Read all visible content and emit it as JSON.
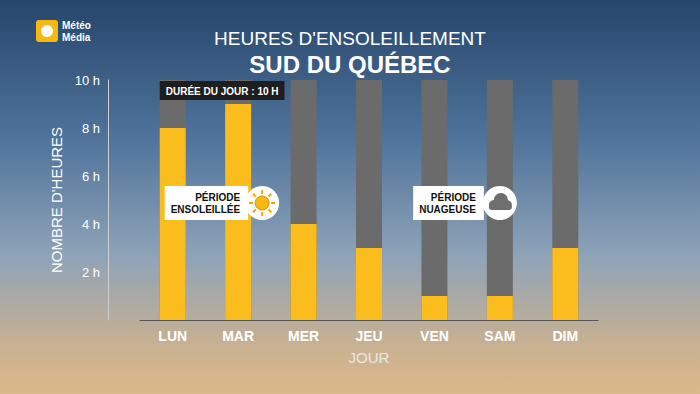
{
  "chart_data": {
    "type": "bar",
    "title": "SUD DU QUÉBEC",
    "subtitle": "HEURES D'ENSOLEILLEMENT",
    "brand": [
      "Météo",
      "Média"
    ],
    "x_label": "JOUR",
    "y_label": "NOMBRE D'HEURES",
    "categories": [
      "LUN",
      "MAR",
      "MER",
      "JEU",
      "VEN",
      "SAM",
      "DIM"
    ],
    "series": [
      {
        "values": [
          10,
          10,
          10,
          10,
          10,
          10,
          10
        ],
        "color": "#6b6b6b"
      },
      {
        "values": [
          8,
          9,
          4,
          3,
          1,
          1,
          3
        ],
        "color": "#fbbd1e"
      }
    ],
    "ylim": [
      0,
      10
    ],
    "yticks": [
      {
        "value": 2,
        "label": "2 h"
      },
      {
        "value": 4,
        "label": "4 h"
      },
      {
        "value": 6,
        "label": "6 h"
      },
      {
        "value": 8,
        "label": "8 h"
      },
      {
        "value": 10,
        "label": "10 h"
      }
    ],
    "grid": false,
    "annotations": [
      {
        "text": "DURÉE DU JOUR : 10 H"
      },
      {
        "text": "PÉRIODE ENSOLEILLÉE"
      },
      {
        "text": "PÉRIODE NUAGEUSE"
      }
    ]
  }
}
